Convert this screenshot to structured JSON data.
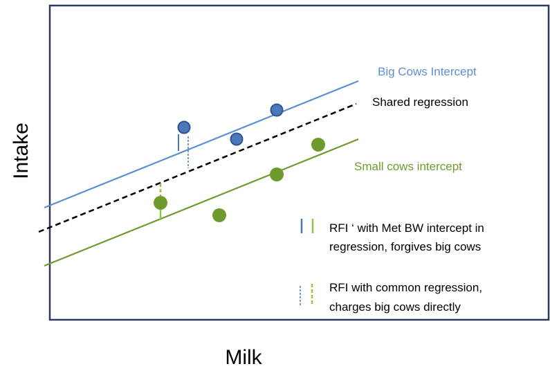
{
  "axes": {
    "xlabel": "Milk",
    "ylabel": "Intake"
  },
  "lines": {
    "big": {
      "label": "Big Cows Intercept",
      "color": "#5B8FD0"
    },
    "shared": {
      "label": "Shared regression",
      "color": "#000000"
    },
    "small": {
      "label": "Small cows intercept",
      "color": "#6E9A2E"
    }
  },
  "points": {
    "big_color": "#4A78B8",
    "big_stroke": "#2E5590",
    "small_color": "#6E9A2E"
  },
  "legend": {
    "item1_line1": "RFI ‘ with Met BW  intercept in",
    "item1_line2": "regression, forgives big cows",
    "item2_line1": "RFI with common regression,",
    "item2_line2": "charges big cows directly",
    "blue_marker_color": "#4A78B8",
    "green_marker_color": "#8DC63F"
  }
}
